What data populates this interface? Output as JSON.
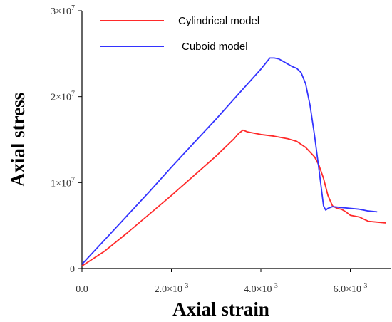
{
  "chart_data": {
    "type": "line",
    "xlabel": "Axial strain",
    "ylabel": "Axial stress",
    "xlim": [
      0,
      0.0069
    ],
    "ylim": [
      0,
      30000000
    ],
    "grid": false,
    "legend_position": "top-left",
    "x_ticks": [
      {
        "value": 0,
        "label_main": "0.0",
        "label_sup": ""
      },
      {
        "value": 0.002,
        "label_main": "2.0×10",
        "label_sup": "-3"
      },
      {
        "value": 0.004,
        "label_main": "4.0×10",
        "label_sup": "-3"
      },
      {
        "value": 0.006,
        "label_main": "6.0×10",
        "label_sup": "-3"
      }
    ],
    "y_ticks": [
      {
        "value": 0,
        "label_main": "0",
        "label_sup": ""
      },
      {
        "value": 10000000,
        "label_main": "1×10",
        "label_sup": "7"
      },
      {
        "value": 20000000,
        "label_main": "2×10",
        "label_sup": "7"
      },
      {
        "value": 30000000,
        "label_main": "3×10",
        "label_sup": "7"
      }
    ],
    "series": [
      {
        "name": "Cylindrical model",
        "color": "#ff2a2a",
        "points": [
          [
            0.0,
            300000
          ],
          [
            0.0005,
            2000000
          ],
          [
            0.001,
            4100000
          ],
          [
            0.0015,
            6300000
          ],
          [
            0.002,
            8500000
          ],
          [
            0.0025,
            10800000
          ],
          [
            0.003,
            13100000
          ],
          [
            0.0034,
            15100000
          ],
          [
            0.0035,
            15700000
          ],
          [
            0.0036,
            16100000
          ],
          [
            0.0037,
            15900000
          ],
          [
            0.004,
            15600000
          ],
          [
            0.0043,
            15400000
          ],
          [
            0.0046,
            15100000
          ],
          [
            0.0048,
            14800000
          ],
          [
            0.005,
            14100000
          ],
          [
            0.0052,
            13000000
          ],
          [
            0.0053,
            12000000
          ],
          [
            0.0054,
            10500000
          ],
          [
            0.0055,
            8500000
          ],
          [
            0.0056,
            7300000
          ],
          [
            0.0057,
            7000000
          ],
          [
            0.0058,
            6900000
          ],
          [
            0.0059,
            6600000
          ],
          [
            0.006,
            6200000
          ],
          [
            0.0062,
            6000000
          ],
          [
            0.0064,
            5500000
          ],
          [
            0.0066,
            5400000
          ],
          [
            0.0068,
            5300000
          ]
        ]
      },
      {
        "name": "Cuboid model",
        "color": "#3333ff",
        "points": [
          [
            0.0,
            500000
          ],
          [
            0.0005,
            3300000
          ],
          [
            0.001,
            6100000
          ],
          [
            0.0015,
            8900000
          ],
          [
            0.002,
            11800000
          ],
          [
            0.0025,
            14600000
          ],
          [
            0.003,
            17400000
          ],
          [
            0.0035,
            20300000
          ],
          [
            0.004,
            23200000
          ],
          [
            0.0042,
            24500000
          ],
          [
            0.0043,
            24500000
          ],
          [
            0.0044,
            24400000
          ],
          [
            0.0045,
            24100000
          ],
          [
            0.0046,
            23800000
          ],
          [
            0.0047,
            23500000
          ],
          [
            0.0048,
            23300000
          ],
          [
            0.0049,
            22800000
          ],
          [
            0.005,
            21500000
          ],
          [
            0.0051,
            19000000
          ],
          [
            0.0052,
            15500000
          ],
          [
            0.0053,
            11500000
          ],
          [
            0.0054,
            7300000
          ],
          [
            0.00545,
            6800000
          ],
          [
            0.0055,
            7000000
          ],
          [
            0.0056,
            7200000
          ],
          [
            0.0058,
            7100000
          ],
          [
            0.006,
            7000000
          ],
          [
            0.0062,
            6900000
          ],
          [
            0.0064,
            6700000
          ],
          [
            0.0066,
            6600000
          ]
        ]
      }
    ]
  }
}
